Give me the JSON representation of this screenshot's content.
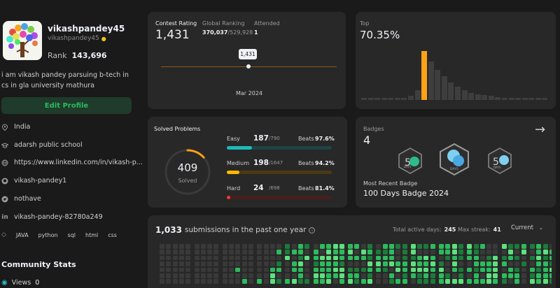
{
  "profile": {
    "username": "vikashpandey45",
    "handle": "vikashpandey45",
    "rank_label": "Rank",
    "rank_value": "143,696",
    "bio": "i am vikash pandey parsuing b-tech in cs in gla university mathura",
    "edit_label": "Edit Profile",
    "location": "India",
    "school": "adarsh public school",
    "website": "https://www.linkedin.com/in/vikash-p...",
    "github": "vikash-pandey1",
    "twitter": "nothave",
    "linkedin": "vikash-pandey-82780a249",
    "skills": [
      "JAVA",
      "python",
      "sql",
      "html",
      "css"
    ],
    "community_title": "Community Stats",
    "views_label": "Views",
    "views_value": "0"
  },
  "contest": {
    "rating_label": "Contest Rating",
    "rating_value": "1,431",
    "global_label": "Global Ranking",
    "global_value": "370,037",
    "global_total": "/529,928",
    "attended_label": "Attended",
    "attended_value": "1",
    "tooltip": "1,431",
    "date": "Mar 2024"
  },
  "top": {
    "label": "Top",
    "value": "70.35%",
    "histogram": [
      2,
      2,
      2,
      2,
      2,
      3,
      4,
      9,
      20,
      100,
      78,
      62,
      48,
      36,
      27,
      20,
      15,
      12,
      10,
      8,
      6,
      5,
      4,
      3,
      2,
      2,
      2,
      2
    ]
  },
  "solved": {
    "title": "Solved Problems",
    "total": "409",
    "sub": "Solved",
    "progress": 0.133,
    "beats_label": "Beats",
    "rows": [
      {
        "name": "Easy",
        "count": "187",
        "total": "/790",
        "beats": "97.6%",
        "frac": 0.237,
        "color": "#1cbaba",
        "track": "#1f4444"
      },
      {
        "name": "Medium",
        "count": "198",
        "total": "/1647",
        "beats": "94.2%",
        "frac": 0.12,
        "color": "#ffb700",
        "track": "#4a3a14"
      },
      {
        "name": "Hard",
        "count": "24",
        "total": "/698",
        "beats": "81.4%",
        "frac": 0.034,
        "color": "#f63737",
        "track": "#4a1e1e"
      }
    ]
  },
  "badges": {
    "label": "Badges",
    "count": "4",
    "recent_label": "Most Recent Badge",
    "recent_name": "100 Days Badge 2024"
  },
  "submissions": {
    "count": "1,033",
    "text": "submissions in the past one year",
    "active_label": "Total active days:",
    "active_value": "245",
    "streak_label": "Max streak:",
    "streak_value": "41",
    "period": "Current"
  },
  "colors": {
    "accent": "#ffa116",
    "green": "#2cbb5d"
  }
}
